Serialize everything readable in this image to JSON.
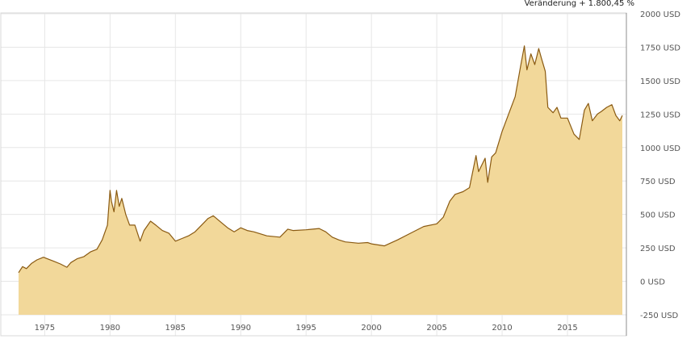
{
  "header": {
    "note": "Veränderung + 1.800,45 %"
  },
  "colors": {
    "area_fill": "#f2d89a",
    "line": "#8a5a12",
    "grid": "#e6e6e6"
  },
  "chart_data": {
    "type": "area",
    "title": "",
    "xlabel": "",
    "ylabel": "",
    "x_ticks": [
      "1975",
      "1980",
      "1985",
      "1990",
      "1995",
      "2000",
      "2005",
      "2010",
      "2015"
    ],
    "y_ticks": [
      "2000 USD",
      "1750 USD",
      "1500 USD",
      "1250 USD",
      "1000 USD",
      "750 USD",
      "500 USD",
      "250 USD",
      "0 USD",
      "-250 USD"
    ],
    "xlim": [
      1973.0,
      2019.2
    ],
    "ylim": [
      -250,
      2000
    ],
    "grid": true,
    "series": [
      {
        "x": [
          1973.0,
          1973.3,
          1973.6,
          1974.0,
          1974.4,
          1974.9,
          1975.3,
          1975.7,
          1976.2,
          1976.7,
          1977.0,
          1977.5,
          1978.0,
          1978.5,
          1979.0,
          1979.4,
          1979.8,
          1980.0,
          1980.1,
          1980.3,
          1980.5,
          1980.7,
          1980.9,
          1981.2,
          1981.5,
          1981.9,
          1982.3,
          1982.6,
          1983.1,
          1983.5,
          1984.0,
          1984.5,
          1985.0,
          1985.5,
          1986.0,
          1986.5,
          1987.0,
          1987.5,
          1987.9,
          1988.5,
          1989.0,
          1989.5,
          1990.0,
          1990.5,
          1991.0,
          1992.0,
          1993.0,
          1993.6,
          1994.0,
          1995.0,
          1996.0,
          1996.5,
          1997.0,
          1997.5,
          1998.0,
          1999.0,
          1999.7,
          2000.0,
          2001.0,
          2002.0,
          2003.0,
          2004.0,
          2005.0,
          2005.5,
          2006.0,
          2006.4,
          2007.0,
          2007.5,
          2008.0,
          2008.2,
          2008.7,
          2008.9,
          2009.2,
          2009.5,
          2010.0,
          2010.5,
          2011.0,
          2011.4,
          2011.7,
          2011.9,
          2012.2,
          2012.5,
          2012.8,
          2013.0,
          2013.3,
          2013.5,
          2013.9,
          2014.2,
          2014.5,
          2015.0,
          2015.5,
          2015.9,
          2016.3,
          2016.6,
          2016.9,
          2017.3,
          2017.6,
          2018.0,
          2018.4,
          2018.7,
          2019.0,
          2019.2
        ],
        "values": [
          65,
          110,
          95,
          135,
          160,
          180,
          165,
          150,
          130,
          105,
          140,
          170,
          185,
          220,
          240,
          310,
          420,
          680,
          600,
          520,
          680,
          560,
          620,
          500,
          420,
          420,
          300,
          380,
          450,
          420,
          380,
          360,
          300,
          320,
          340,
          370,
          420,
          470,
          490,
          440,
          400,
          370,
          400,
          380,
          370,
          340,
          330,
          390,
          380,
          385,
          395,
          370,
          330,
          310,
          295,
          285,
          290,
          280,
          265,
          310,
          360,
          410,
          430,
          480,
          600,
          650,
          670,
          700,
          940,
          820,
          920,
          740,
          930,
          960,
          1120,
          1250,
          1380,
          1600,
          1760,
          1580,
          1700,
          1620,
          1740,
          1670,
          1570,
          1300,
          1260,
          1300,
          1220,
          1220,
          1100,
          1060,
          1280,
          1330,
          1200,
          1250,
          1270,
          1300,
          1320,
          1240,
          1200,
          1240
        ]
      }
    ]
  }
}
